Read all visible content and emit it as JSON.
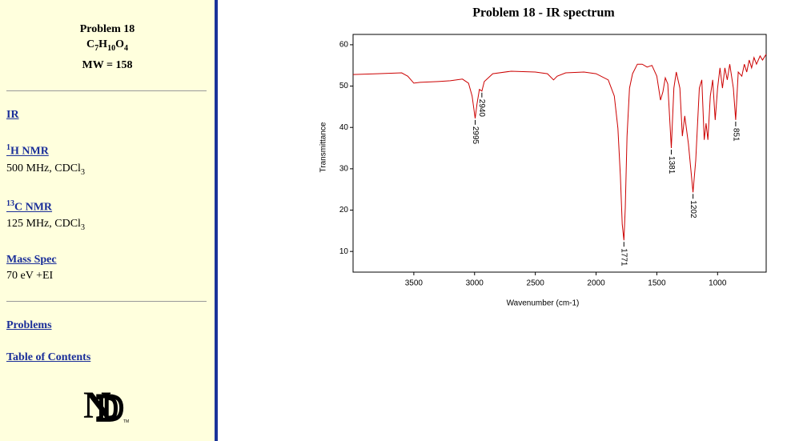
{
  "sidebar": {
    "problem": "Problem 18",
    "formula": [
      "C",
      "7",
      "H",
      "10",
      "O",
      "4"
    ],
    "mw": "MW = 158",
    "links": {
      "ir": "IR",
      "hnmr": [
        "1",
        "H NMR"
      ],
      "hnmr_info": [
        "500 MHz, CDCl",
        "3"
      ],
      "cnmr": [
        "13",
        "C NMR"
      ],
      "cnmr_info": [
        "125 MHz, CDCl",
        "3"
      ],
      "mass": "Mass Spec",
      "mass_info": "70 eV +EI",
      "problems": "Problems",
      "toc": "Table of Contents"
    },
    "logo_mark": "TM"
  },
  "chart_data": {
    "type": "line",
    "title": "Problem 18 - IR spectrum",
    "x_label": "Wavenumber (cm-1)",
    "y_label": "Transmittance",
    "xlim": [
      4000,
      600
    ],
    "ylim": [
      5,
      62.5
    ],
    "xticks": [
      3500,
      3000,
      2500,
      2000,
      1500,
      1000
    ],
    "yticks": [
      10,
      20,
      30,
      40,
      50,
      60
    ],
    "x": [
      4000,
      3800,
      3600,
      3550,
      3500,
      3450,
      3300,
      3200,
      3100,
      3050,
      3020,
      2995,
      2980,
      2960,
      2940,
      2920,
      2850,
      2700,
      2500,
      2400,
      2350,
      2320,
      2250,
      2100,
      2000,
      1900,
      1850,
      1820,
      1800,
      1785,
      1771,
      1760,
      1745,
      1725,
      1700,
      1660,
      1620,
      1580,
      1540,
      1500,
      1470,
      1450,
      1430,
      1410,
      1381,
      1360,
      1340,
      1310,
      1290,
      1270,
      1240,
      1202,
      1180,
      1150,
      1130,
      1110,
      1095,
      1080,
      1060,
      1040,
      1020,
      1000,
      980,
      960,
      940,
      920,
      900,
      870,
      851,
      830,
      800,
      780,
      760,
      740,
      720,
      700,
      680,
      650,
      630,
      600
    ],
    "series": [
      {
        "name": "IR",
        "color": "#cc0000",
        "values": [
          52.8,
          53,
          53.2,
          52.4,
          50.7,
          50.9,
          51.1,
          51.3,
          51.7,
          50.7,
          47.6,
          42.2,
          45.7,
          49.2,
          48.8,
          51.1,
          53,
          53.6,
          53.4,
          53,
          51.5,
          52.4,
          53.2,
          53.4,
          53,
          51.5,
          47.6,
          39.8,
          28.2,
          16.6,
          12.7,
          20.5,
          37.9,
          49.5,
          53,
          55.3,
          55.3,
          54.6,
          55,
          52.4,
          46.6,
          48.6,
          52,
          50.5,
          35,
          49.5,
          53.4,
          49.5,
          37.9,
          42.8,
          36,
          24.3,
          32,
          49.5,
          51.5,
          37,
          41,
          37,
          47.6,
          51.5,
          41.8,
          49.5,
          54.4,
          49.5,
          54.4,
          51.5,
          55.3,
          49.5,
          41.8,
          53.4,
          52.4,
          55.3,
          53.4,
          56.3,
          54.4,
          56.9,
          55.3,
          57.3,
          56.3,
          57.7
        ]
      }
    ],
    "peak_labels": [
      2995,
      2940,
      1771,
      1381,
      1202,
      851
    ]
  }
}
